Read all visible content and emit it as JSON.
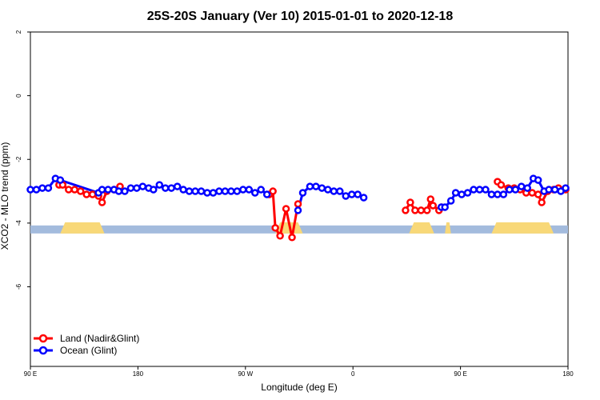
{
  "chart_data": {
    "type": "line",
    "title": "25S-20S January (Ver 10)   2015-01-01 to 2020-12-18",
    "xlabel": "Longitude (deg E)",
    "ylabel": "XCO2 - MLO trend (ppm)",
    "xlim": [
      90,
      540
    ],
    "ylim": [
      -8.5,
      2
    ],
    "x_ticks": [
      {
        "value": 90,
        "label": "90 E"
      },
      {
        "value": 180,
        "label": "180"
      },
      {
        "value": 270,
        "label": "90 W"
      },
      {
        "value": 360,
        "label": "0"
      },
      {
        "value": 450,
        "label": "90 E"
      },
      {
        "value": 540,
        "label": "180"
      }
    ],
    "y_ticks": [
      {
        "value": 2,
        "label": "2"
      },
      {
        "value": 0,
        "label": "0"
      },
      {
        "value": -2,
        "label": "-2"
      },
      {
        "value": -4,
        "label": "-4"
      },
      {
        "value": -6,
        "label": "-6"
      }
    ],
    "land_mask": {
      "y": -4.2,
      "ocean_color": "#a3bbdd",
      "land_color": "#f8d878",
      "land_ranges": [
        [
          115,
          152
        ],
        [
          295,
          318
        ],
        [
          407,
          428
        ],
        [
          437,
          442
        ],
        [
          476,
          528
        ]
      ]
    },
    "legend": {
      "position": "bottom-left"
    },
    "series": [
      {
        "name": "Land (Nadir&Glint)",
        "color": "#ff0000",
        "segments": [
          [
            [
              114,
              -2.8
            ],
            [
              117,
              -2.8
            ],
            [
              122,
              -2.95
            ],
            [
              127,
              -2.95
            ],
            [
              132,
              -3.0
            ],
            [
              137,
              -3.1
            ],
            [
              142,
              -3.1
            ],
            [
              147,
              -3.15
            ],
            [
              150,
              -3.35
            ],
            [
              154,
              -3.0
            ],
            [
              160,
              -2.95
            ],
            [
              165,
              -2.85
            ]
          ],
          [
            [
              290,
              -3.1
            ],
            [
              293,
              -3.0
            ],
            [
              295,
              -4.15
            ],
            [
              299,
              -4.4
            ],
            [
              304,
              -3.55
            ],
            [
              309,
              -4.45
            ],
            [
              314,
              -3.4
            ]
          ],
          [
            [
              404,
              -3.6
            ],
            [
              408,
              -3.35
            ],
            [
              412,
              -3.6
            ],
            [
              417,
              -3.6
            ],
            [
              422,
              -3.6
            ],
            [
              425,
              -3.25
            ],
            [
              427,
              -3.45
            ],
            [
              432,
              -3.6
            ],
            [
              434,
              -3.5
            ]
          ],
          [
            [
              481,
              -2.7
            ],
            [
              484,
              -2.8
            ],
            [
              490,
              -2.9
            ],
            [
              495,
              -2.9
            ],
            [
              500,
              -2.95
            ],
            [
              505,
              -3.05
            ],
            [
              510,
              -3.05
            ],
            [
              515,
              -3.1
            ],
            [
              518,
              -3.35
            ],
            [
              523,
              -3.0
            ],
            [
              528,
              -2.95
            ],
            [
              532,
              -2.9
            ],
            [
              538,
              -2.95
            ]
          ]
        ]
      },
      {
        "name": "Ocean (Glint)",
        "color": "#0000ff",
        "segments": [
          [
            [
              90,
              -2.95
            ],
            [
              95,
              -2.95
            ],
            [
              100,
              -2.9
            ],
            [
              105,
              -2.9
            ],
            [
              111,
              -2.6
            ],
            [
              115,
              -2.65
            ],
            [
              147,
              -3.05
            ],
            [
              150,
              -2.95
            ],
            [
              155,
              -2.95
            ],
            [
              160,
              -2.95
            ],
            [
              164,
              -3.0
            ],
            [
              169,
              -3.0
            ],
            [
              174,
              -2.9
            ],
            [
              179,
              -2.9
            ],
            [
              184,
              -2.85
            ],
            [
              189,
              -2.9
            ],
            [
              193,
              -2.95
            ],
            [
              198,
              -2.8
            ],
            [
              203,
              -2.9
            ],
            [
              208,
              -2.9
            ],
            [
              213,
              -2.85
            ],
            [
              218,
              -2.95
            ],
            [
              223,
              -3.0
            ],
            [
              228,
              -3.0
            ],
            [
              233,
              -3.0
            ],
            [
              238,
              -3.05
            ],
            [
              243,
              -3.05
            ],
            [
              248,
              -3.0
            ],
            [
              253,
              -3.0
            ],
            [
              258,
              -3.0
            ],
            [
              263,
              -3.0
            ],
            [
              268,
              -2.95
            ],
            [
              273,
              -2.95
            ],
            [
              278,
              -3.05
            ],
            [
              283,
              -2.95
            ],
            [
              288,
              -3.1
            ]
          ],
          [
            [
              314,
              -3.6
            ],
            [
              318,
              -3.05
            ],
            [
              324,
              -2.85
            ],
            [
              329,
              -2.85
            ],
            [
              334,
              -2.9
            ],
            [
              339,
              -2.95
            ],
            [
              344,
              -3.0
            ],
            [
              349,
              -3.0
            ],
            [
              354,
              -3.15
            ],
            [
              359,
              -3.1
            ],
            [
              364,
              -3.1
            ],
            [
              369,
              -3.2
            ]
          ],
          [
            [
              434,
              -3.5
            ],
            [
              437,
              -3.5
            ],
            [
              442,
              -3.3
            ],
            [
              446,
              -3.05
            ],
            [
              451,
              -3.1
            ],
            [
              456,
              -3.05
            ],
            [
              461,
              -2.95
            ],
            [
              466,
              -2.95
            ],
            [
              471,
              -2.95
            ],
            [
              476,
              -3.1
            ],
            [
              481,
              -3.1
            ],
            [
              486,
              -3.1
            ],
            [
              491,
              -2.95
            ],
            [
              496,
              -2.95
            ],
            [
              501,
              -2.85
            ],
            [
              506,
              -2.9
            ],
            [
              511,
              -2.6
            ],
            [
              515,
              -2.65
            ],
            [
              520,
              -3.0
            ],
            [
              524,
              -2.95
            ],
            [
              529,
              -2.95
            ],
            [
              534,
              -3.0
            ],
            [
              538,
              -2.9
            ]
          ]
        ]
      }
    ]
  }
}
